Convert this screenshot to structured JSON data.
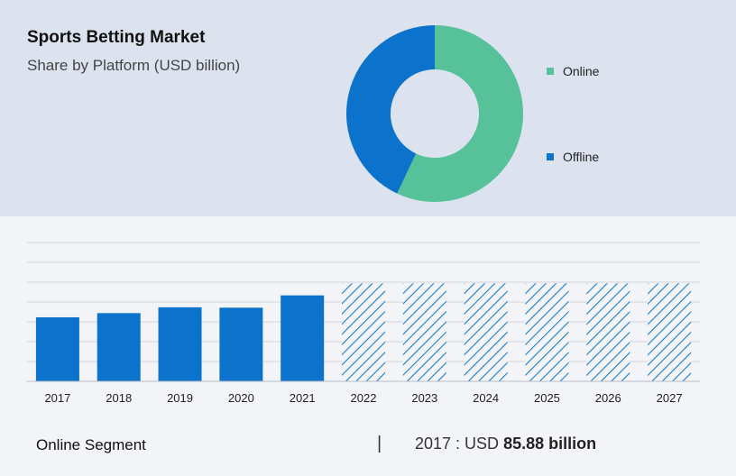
{
  "title": "Sports Betting Market",
  "subtitle": "Share by Platform (USD billion)",
  "colors": {
    "online": "#57c19a",
    "offline": "#0c73cc",
    "bar": "#0c73cc",
    "forecast": "#1a7ccf",
    "grid": "#d0d4dc"
  },
  "chart_data": [
    {
      "type": "pie",
      "variant": "donut",
      "title": "",
      "slices": [
        {
          "label": "Online",
          "value": 57
        },
        {
          "label": "Offline",
          "value": 43
        }
      ],
      "legend": "right"
    },
    {
      "type": "bar",
      "title": "",
      "categories": [
        "2017",
        "2018",
        "2019",
        "2020",
        "2021",
        "2022",
        "2023",
        "2024",
        "2025",
        "2026",
        "2027"
      ],
      "values": [
        85.88,
        91.5,
        99.3,
        98.8,
        115.3,
        131.4,
        131.4,
        131.4,
        131.4,
        131.4,
        131.4
      ],
      "forecast_from": "2022",
      "ylim": [
        0,
        185
      ],
      "grid": true,
      "xlabel": "",
      "ylabel": ""
    }
  ],
  "footer": {
    "segment_label": "Online Segment",
    "separator": "|",
    "stat_prefix": "2017 : USD",
    "stat_value": "85.88 billion"
  }
}
